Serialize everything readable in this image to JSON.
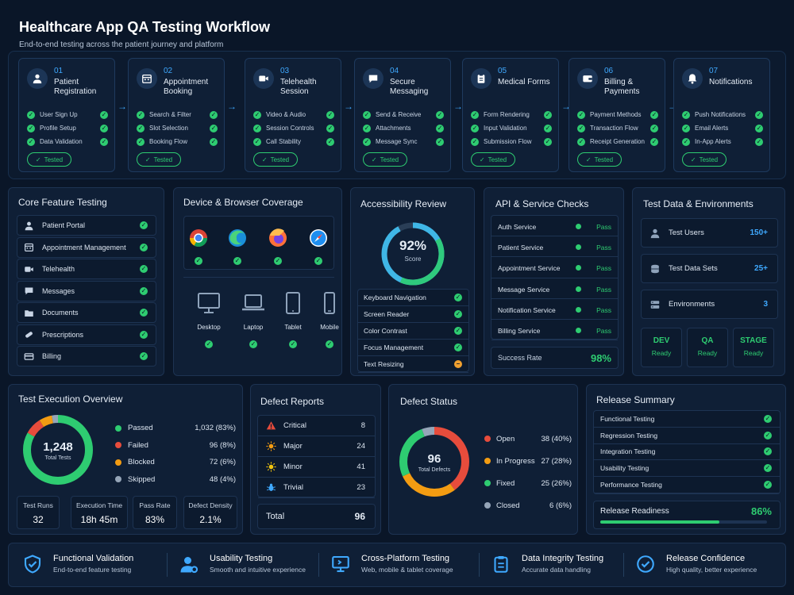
{
  "header": {
    "title": "Healthcare App QA Testing Workflow",
    "subtitle": "End-to-end testing across the patient journey and platform"
  },
  "steps": [
    {
      "num": "01",
      "name": "Patient Registration",
      "icon": "user-icon",
      "items": [
        "User Sign Up",
        "Profile Setup",
        "Data Validation"
      ],
      "status": "Tested"
    },
    {
      "num": "02",
      "name": "Appointment Booking",
      "icon": "calendar-icon",
      "items": [
        "Search & Filter",
        "Slot Selection",
        "Booking Flow"
      ],
      "status": "Tested"
    },
    {
      "num": "03",
      "name": "Telehealth Session",
      "icon": "video-icon",
      "items": [
        "Video & Audio",
        "Session Controls",
        "Call Stability"
      ],
      "status": "Tested"
    },
    {
      "num": "04",
      "name": "Secure Messaging",
      "icon": "chat-icon",
      "items": [
        "Send & Receive",
        "Attachments",
        "Message Sync"
      ],
      "status": "Tested"
    },
    {
      "num": "05",
      "name": "Medical Forms",
      "icon": "clipboard-icon",
      "items": [
        "Form Rendering",
        "Input Validation",
        "Submission Flow"
      ],
      "status": "Tested"
    },
    {
      "num": "06",
      "name": "Billing & Payments",
      "icon": "wallet-icon",
      "items": [
        "Payment Methods",
        "Transaction Flow",
        "Receipt Generation"
      ],
      "status": "Tested"
    },
    {
      "num": "07",
      "name": "Notifications",
      "icon": "bell-icon",
      "items": [
        "Push Notifications",
        "Email Alerts",
        "In-App Alerts"
      ],
      "status": "Tested"
    }
  ],
  "core": {
    "title": "Core Feature Testing",
    "items": [
      {
        "label": "Patient Portal",
        "icon": "user-icon"
      },
      {
        "label": "Appointment Management",
        "icon": "calendar-icon"
      },
      {
        "label": "Telehealth",
        "icon": "video-icon"
      },
      {
        "label": "Messages",
        "icon": "chat-icon"
      },
      {
        "label": "Documents",
        "icon": "folder-icon"
      },
      {
        "label": "Prescriptions",
        "icon": "pill-icon"
      },
      {
        "label": "Billing",
        "icon": "card-icon"
      }
    ]
  },
  "devices": {
    "title": "Device & Browser Coverage",
    "browsers": [
      "chrome-icon",
      "edge-icon",
      "firefox-icon",
      "safari-icon"
    ],
    "devices": [
      "Desktop",
      "Laptop",
      "Tablet",
      "Mobile"
    ]
  },
  "accessibility": {
    "title": "Accessibility Review",
    "score": "92%",
    "score_label": "Score",
    "score_value": 92,
    "items": [
      {
        "label": "Keyboard Navigation",
        "status": "pass"
      },
      {
        "label": "Screen Reader",
        "status": "pass"
      },
      {
        "label": "Color Contrast",
        "status": "pass"
      },
      {
        "label": "Focus Management",
        "status": "pass"
      },
      {
        "label": "Text Resizing",
        "status": "warning"
      }
    ]
  },
  "api": {
    "title": "API & Service Checks",
    "items": [
      {
        "label": "Auth Service",
        "status": "Pass"
      },
      {
        "label": "Patient Service",
        "status": "Pass"
      },
      {
        "label": "Appointment Service",
        "status": "Pass"
      },
      {
        "label": "Message Service",
        "status": "Pass"
      },
      {
        "label": "Notification Service",
        "status": "Pass"
      },
      {
        "label": "Billing Service",
        "status": "Pass"
      }
    ],
    "success_label": "Success Rate",
    "success_value": "98%"
  },
  "testdata": {
    "title": "Test Data & Environments",
    "items": [
      {
        "label": "Test Users",
        "value": "150+",
        "icon": "users-icon"
      },
      {
        "label": "Test Data Sets",
        "value": "25+",
        "icon": "database-icon"
      },
      {
        "label": "Environments",
        "value": "3",
        "icon": "server-icon"
      }
    ],
    "envs": [
      {
        "name": "DEV",
        "status": "Ready"
      },
      {
        "name": "QA",
        "status": "Ready"
      },
      {
        "name": "STAGE",
        "status": "Ready"
      }
    ]
  },
  "execution": {
    "title": "Test Execution Overview",
    "total": "1,248",
    "total_label": "Total Tests",
    "legend": [
      {
        "label": "Passed",
        "value": "1,032 (83%)",
        "color": "#2ecc71",
        "pct": 83
      },
      {
        "label": "Failed",
        "value": "96 (8%)",
        "color": "#e74c3c",
        "pct": 8
      },
      {
        "label": "Blocked",
        "value": "72 (6%)",
        "color": "#f39c12",
        "pct": 6
      },
      {
        "label": "Skipped",
        "value": "48 (4%)",
        "color": "#95a5b8",
        "pct": 4
      }
    ],
    "stats": [
      {
        "label": "Test Runs",
        "value": "32"
      },
      {
        "label": "Execution Time",
        "value": "18h 45m"
      },
      {
        "label": "Pass Rate",
        "value": "83%"
      },
      {
        "label": "Defect Density",
        "value": "2.1%"
      }
    ]
  },
  "defects": {
    "title": "Defect Reports",
    "items": [
      {
        "label": "Critical",
        "value": "8",
        "icon": "warning-icon",
        "color": "#e74c3c"
      },
      {
        "label": "Major",
        "value": "24",
        "icon": "sun-icon",
        "color": "#f39c12"
      },
      {
        "label": "Minor",
        "value": "41",
        "icon": "sun-icon",
        "color": "#f1c40f"
      },
      {
        "label": "Trivial",
        "value": "23",
        "icon": "bug-icon",
        "color": "#3fa9ff"
      }
    ],
    "total_label": "Total",
    "total_value": "96"
  },
  "defect_status": {
    "title": "Defect Status",
    "total": "96",
    "total_label": "Total Defects",
    "legend": [
      {
        "label": "Open",
        "value": "38 (40%)",
        "color": "#e74c3c",
        "pct": 40
      },
      {
        "label": "In Progress",
        "value": "27 (28%)",
        "color": "#f39c12",
        "pct": 28
      },
      {
        "label": "Fixed",
        "value": "25 (26%)",
        "color": "#2ecc71",
        "pct": 26
      },
      {
        "label": "Closed",
        "value": "6 (6%)",
        "color": "#95a5b8",
        "pct": 6
      }
    ]
  },
  "release": {
    "title": "Release Summary",
    "items": [
      "Functional Testing",
      "Regression Testing",
      "Integration Testing",
      "Usability Testing",
      "Performance Testing"
    ],
    "readiness_label": "Release Readiness",
    "readiness_value": "86%",
    "readiness_pct": 86
  },
  "footer": [
    {
      "title": "Functional Validation",
      "sub": "End-to-end feature testing",
      "icon": "shield-check-icon"
    },
    {
      "title": "Usability Testing",
      "sub": "Smooth and intuitive experience",
      "icon": "user-gear-icon"
    },
    {
      "title": "Cross-Platform Testing",
      "sub": "Web, mobile & tablet coverage",
      "icon": "monitor-icon"
    },
    {
      "title": "Data Integrity Testing",
      "sub": "Accurate data handling",
      "icon": "clipboard-check-icon"
    },
    {
      "title": "Release Confidence",
      "sub": "High quality, better experience",
      "icon": "badge-check-icon"
    }
  ]
}
